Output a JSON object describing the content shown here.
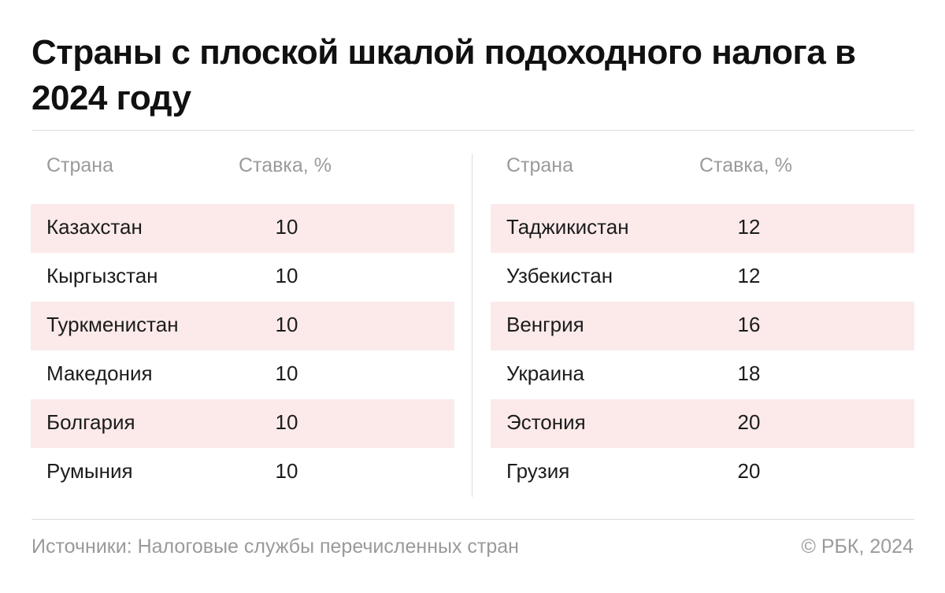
{
  "title": "Страны с плоской шкалой подоходного налога в 2024 году",
  "chart_data": {
    "type": "table",
    "title": "Страны с плоской шкалой подоходного налога в 2024 году",
    "columns": [
      "Страна",
      "Ставка, %"
    ],
    "left": [
      {
        "country": "Казахстан",
        "rate": "10"
      },
      {
        "country": "Кыргызстан",
        "rate": "10"
      },
      {
        "country": "Туркменистан",
        "rate": "10"
      },
      {
        "country": "Македония",
        "rate": "10"
      },
      {
        "country": "Болгария",
        "rate": "10"
      },
      {
        "country": "Румыния",
        "rate": "10"
      }
    ],
    "right": [
      {
        "country": "Таджикистан",
        "rate": "12"
      },
      {
        "country": "Узбекистан",
        "rate": "12"
      },
      {
        "country": "Венгрия",
        "rate": "16"
      },
      {
        "country": "Украина",
        "rate": "18"
      },
      {
        "country": "Эстония",
        "rate": "20"
      },
      {
        "country": "Грузия",
        "rate": "20"
      }
    ]
  },
  "footer": {
    "source": "Источники: Налоговые службы перечисленных стран",
    "copyright": "© РБК, 2024"
  },
  "colors": {
    "row_shade": "#fceaea",
    "divider": "#dcdcdc",
    "muted_text": "#9a9a9a"
  }
}
